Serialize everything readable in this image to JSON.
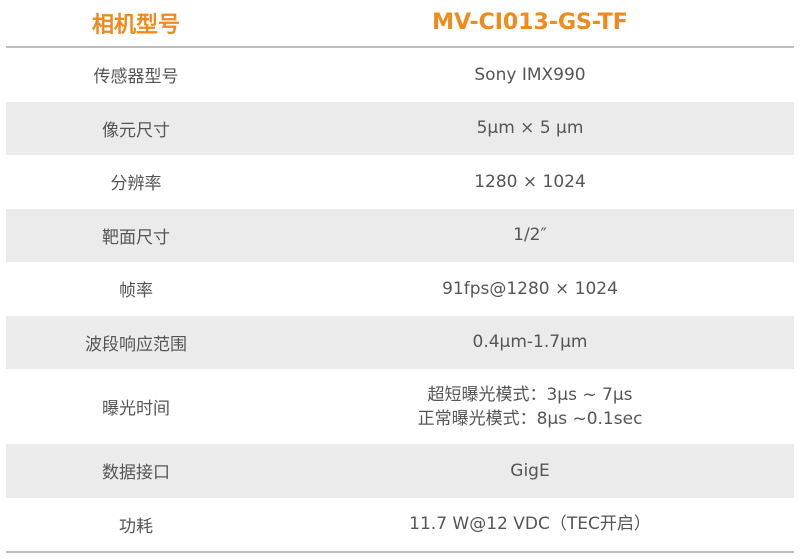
{
  "header": {
    "label": "相机型号",
    "value": "MV-CI013-GS-TF"
  },
  "accent_color": "#f08a1c",
  "rows": [
    {
      "label": "传感器型号",
      "value": [
        "Sony IMX990"
      ]
    },
    {
      "label": "像元尺寸",
      "value": [
        "5μm × 5 μm"
      ]
    },
    {
      "label": "分辨率",
      "value": [
        "1280 × 1024"
      ]
    },
    {
      "label": "靶面尺寸",
      "value": [
        "1/2″"
      ]
    },
    {
      "label": "帧率",
      "value": [
        "91fps@1280 × 1024"
      ]
    },
    {
      "label": "波段响应范围",
      "value": [
        "0.4μm-1.7μm"
      ]
    },
    {
      "label": "曝光时间",
      "value": [
        "超短曝光模式：3μs ~ 7μs",
        "正常曝光模式：8μs ~0.1sec"
      ]
    },
    {
      "label": "数据接口",
      "value": [
        "GigE"
      ]
    },
    {
      "label": "功耗",
      "value": [
        "11.7 W@12 VDC（TEC开启）"
      ]
    }
  ]
}
